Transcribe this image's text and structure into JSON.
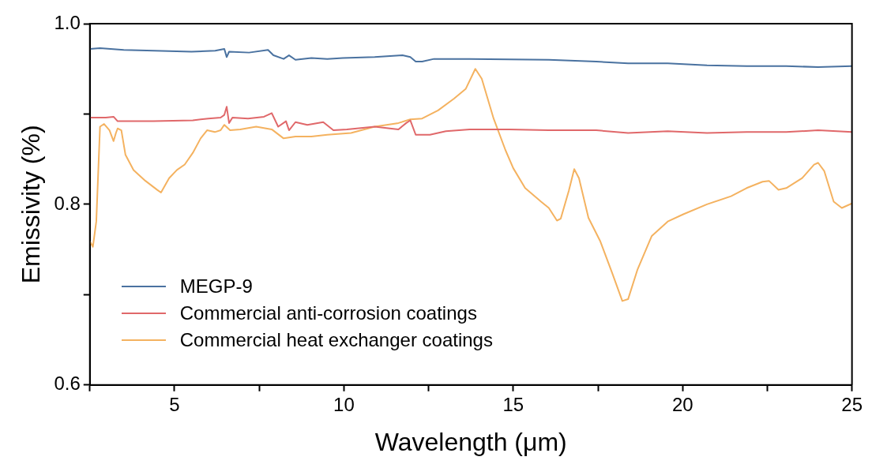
{
  "chart_data": {
    "type": "line",
    "xlabel": "Wavelength (μm)",
    "ylabel": "Emissivity (%)",
    "xlim": [
      2.5,
      25
    ],
    "ylim": [
      0.6,
      1.0
    ],
    "xticks": [
      {
        "value": 2.5,
        "label": null
      },
      5,
      {
        "value": 7.5,
        "label": null
      },
      10,
      {
        "value": 12.5,
        "label": null
      },
      15,
      {
        "value": 17.5,
        "label": null
      },
      20,
      {
        "value": 22.5,
        "label": null
      },
      25
    ],
    "yticks": [
      {
        "value": 0.6,
        "label": "0.6"
      },
      {
        "value": 0.7,
        "label": null
      },
      {
        "value": 0.8,
        "label": "0.8"
      },
      {
        "value": 0.9,
        "label": null
      },
      {
        "value": 1.0,
        "label": "1.0"
      }
    ],
    "legend": "bottom left",
    "marker": "none",
    "line_style": "solid",
    "series": [
      {
        "name": "MEGP-9",
        "color": "#4a72a0",
        "x": [
          2.5,
          2.8,
          3.5,
          4.4,
          5.5,
          6.2,
          6.47,
          6.54,
          6.61,
          7.2,
          7.76,
          7.92,
          8.22,
          8.38,
          8.57,
          9.04,
          9.51,
          9.97,
          10.91,
          11.73,
          11.96,
          12.12,
          12.31,
          12.66,
          13.71,
          16.05,
          17.45,
          18.39,
          19.56,
          20.72,
          21.89,
          23.06,
          24.0,
          25.0
        ],
        "values": [
          0.972,
          0.973,
          0.971,
          0.97,
          0.969,
          0.97,
          0.972,
          0.963,
          0.969,
          0.968,
          0.971,
          0.965,
          0.961,
          0.965,
          0.96,
          0.962,
          0.961,
          0.962,
          0.963,
          0.965,
          0.963,
          0.958,
          0.958,
          0.961,
          0.961,
          0.96,
          0.958,
          0.956,
          0.956,
          0.954,
          0.953,
          0.953,
          0.952,
          0.953
        ]
      },
      {
        "name": "Commercial anti-corrosion coatings",
        "color": "#e0686a",
        "x": [
          2.5,
          2.97,
          3.2,
          3.32,
          4.37,
          5.54,
          6.0,
          6.36,
          6.47,
          6.54,
          6.61,
          6.71,
          7.17,
          7.64,
          7.87,
          8.06,
          8.29,
          8.38,
          8.57,
          8.92,
          9.39,
          9.69,
          10.09,
          10.91,
          11.61,
          11.84,
          11.96,
          12.12,
          12.54,
          13.01,
          13.71,
          14.88,
          16.05,
          17.45,
          18.39,
          19.56,
          20.72,
          21.89,
          23.06,
          24.0,
          25.0
        ],
        "values": [
          0.896,
          0.896,
          0.897,
          0.892,
          0.892,
          0.893,
          0.895,
          0.896,
          0.899,
          0.908,
          0.89,
          0.896,
          0.895,
          0.897,
          0.901,
          0.886,
          0.892,
          0.882,
          0.891,
          0.888,
          0.891,
          0.882,
          0.883,
          0.886,
          0.883,
          0.89,
          0.893,
          0.877,
          0.877,
          0.881,
          0.883,
          0.883,
          0.882,
          0.882,
          0.879,
          0.881,
          0.879,
          0.88,
          0.88,
          0.882,
          0.88
        ]
      },
      {
        "name": "Commercial heat exchanger coatings",
        "color": "#f4b260",
        "x": [
          2.5,
          2.59,
          2.69,
          2.8,
          2.92,
          3.08,
          3.2,
          3.27,
          3.32,
          3.43,
          3.55,
          3.79,
          4.14,
          4.49,
          4.6,
          4.84,
          5.07,
          5.3,
          5.54,
          5.77,
          5.96,
          6.19,
          6.36,
          6.47,
          6.64,
          6.94,
          7.41,
          7.87,
          8.22,
          8.57,
          9.04,
          9.51,
          10.21,
          10.91,
          11.61,
          11.96,
          12.31,
          12.78,
          13.25,
          13.6,
          13.88,
          14.07,
          14.42,
          14.77,
          15.0,
          15.35,
          15.82,
          16.05,
          16.29,
          16.4,
          16.64,
          16.8,
          16.94,
          17.22,
          17.57,
          17.92,
          18.22,
          18.39,
          18.67,
          19.09,
          19.56,
          20.02,
          20.72,
          21.43,
          21.89,
          22.36,
          22.55,
          22.83,
          23.06,
          23.53,
          23.88,
          24.0,
          24.18,
          24.46,
          24.7,
          25.0
        ],
        "values": [
          0.759,
          0.753,
          0.781,
          0.886,
          0.889,
          0.882,
          0.87,
          0.879,
          0.884,
          0.882,
          0.855,
          0.838,
          0.826,
          0.816,
          0.813,
          0.829,
          0.838,
          0.844,
          0.857,
          0.873,
          0.882,
          0.88,
          0.882,
          0.888,
          0.882,
          0.883,
          0.886,
          0.883,
          0.873,
          0.875,
          0.875,
          0.877,
          0.879,
          0.886,
          0.89,
          0.894,
          0.895,
          0.904,
          0.917,
          0.928,
          0.95,
          0.939,
          0.895,
          0.86,
          0.84,
          0.818,
          0.803,
          0.796,
          0.782,
          0.784,
          0.815,
          0.839,
          0.829,
          0.785,
          0.759,
          0.724,
          0.693,
          0.695,
          0.728,
          0.765,
          0.781,
          0.789,
          0.8,
          0.809,
          0.818,
          0.825,
          0.826,
          0.816,
          0.818,
          0.829,
          0.844,
          0.846,
          0.837,
          0.803,
          0.796,
          0.801
        ]
      }
    ]
  }
}
